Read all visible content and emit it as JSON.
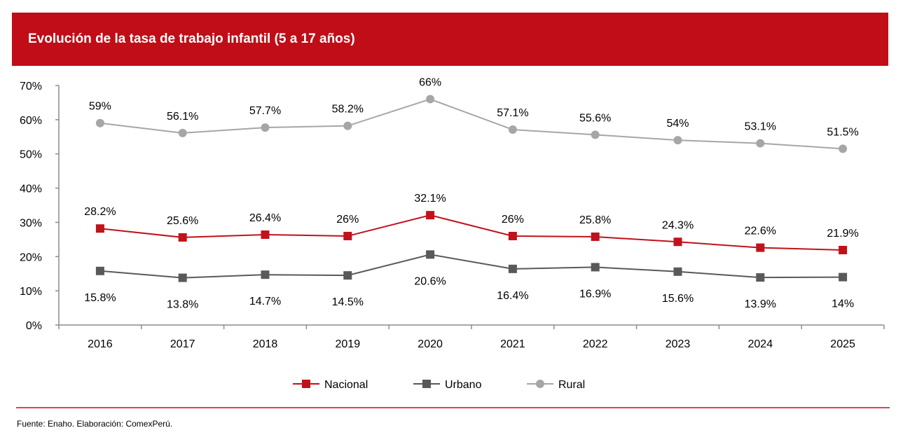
{
  "header": {
    "title": "Evolución de la tasa de trabajo infantil (5 a 17 años)"
  },
  "source": "Fuente: Enaho. Elaboración: ComexPerú.",
  "colors": {
    "header_bg": "#c00d17",
    "nacional": "#c0121b",
    "urbano": "#595959",
    "rural": "#a6a6a6"
  },
  "chart_data": {
    "type": "line",
    "title": "Evolución de la tasa de trabajo infantil (5 a 17 años)",
    "x": [
      "2016",
      "2017",
      "2018",
      "2019",
      "2020",
      "2021",
      "2022",
      "2023",
      "2024",
      "2025"
    ],
    "ylim": [
      0,
      70
    ],
    "yticks": [
      "0%",
      "10%",
      "20%",
      "30%",
      "40%",
      "50%",
      "60%",
      "70%"
    ],
    "grid": false,
    "legend": "bottom-center",
    "series": [
      {
        "name": "Nacional",
        "marker": "square",
        "color": "#c0121b",
        "values": [
          28.2,
          25.6,
          26.4,
          26,
          32.1,
          26,
          25.8,
          24.3,
          22.6,
          21.9
        ],
        "labels": [
          "28.2%",
          "25.6%",
          "26.4%",
          "26%",
          "32.1%",
          "26%",
          "25.8%",
          "24.3%",
          "22.6%",
          "21.9%"
        ]
      },
      {
        "name": "Urbano",
        "marker": "square",
        "color": "#595959",
        "values": [
          15.8,
          13.8,
          14.7,
          14.5,
          20.6,
          16.4,
          16.9,
          15.6,
          13.9,
          14
        ],
        "labels": [
          "15.8%",
          "13.8%",
          "14.7%",
          "14.5%",
          "20.6%",
          "16.4%",
          "16.9%",
          "15.6%",
          "13.9%",
          "14%"
        ]
      },
      {
        "name": "Rural",
        "marker": "circle",
        "color": "#a6a6a6",
        "values": [
          59,
          56.1,
          57.7,
          58.2,
          66,
          57.1,
          55.6,
          54,
          53.1,
          51.5
        ],
        "labels": [
          "59%",
          "56.1%",
          "57.7%",
          "58.2%",
          "66%",
          "57.1%",
          "55.6%",
          "54%",
          "53.1%",
          "51.5%"
        ]
      }
    ]
  }
}
